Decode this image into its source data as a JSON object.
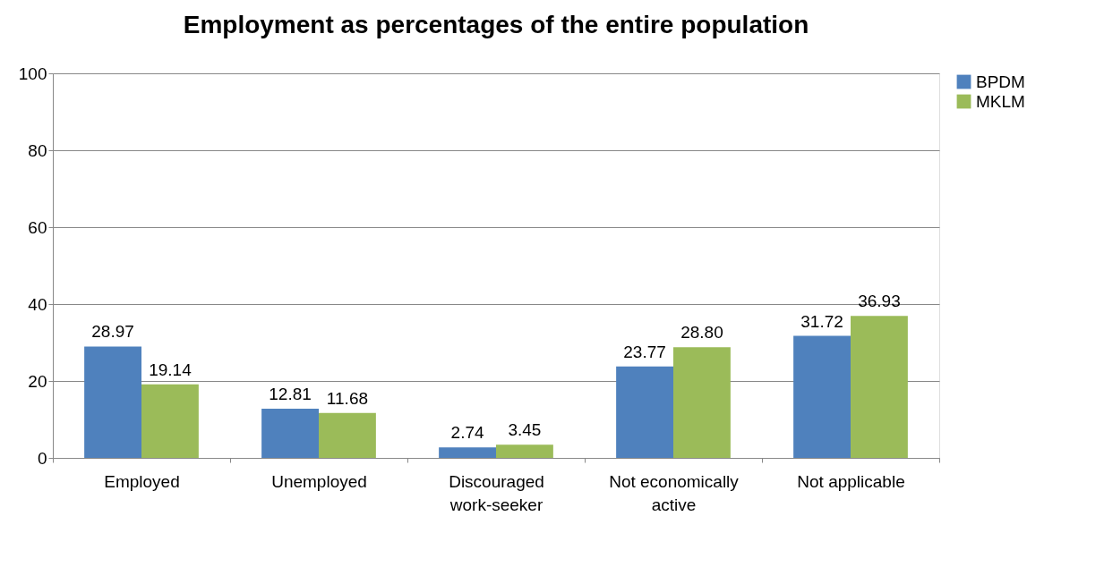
{
  "chart_data": {
    "type": "bar",
    "title": "Employment as percentages of the entire population",
    "categories": [
      "Employed",
      "Unemployed",
      "Discouraged work-seeker",
      "Not economically active",
      "Not applicable"
    ],
    "series": [
      {
        "name": "BPDM",
        "color": "#4f81bd",
        "values": [
          28.97,
          12.81,
          2.74,
          23.77,
          31.72
        ],
        "value_labels": [
          "28.97",
          "12.81",
          "2.74",
          "23.77",
          "31.72"
        ]
      },
      {
        "name": "MKLM",
        "color": "#9bbb59",
        "values": [
          19.14,
          11.68,
          3.45,
          28.8,
          36.93
        ],
        "value_labels": [
          "19.14",
          "11.68",
          "3.45",
          "28.80",
          "36.93"
        ]
      }
    ],
    "ylim": [
      0,
      100
    ],
    "yticks": [
      0,
      20,
      40,
      60,
      80,
      100
    ],
    "grid": "y",
    "legend": "right"
  }
}
